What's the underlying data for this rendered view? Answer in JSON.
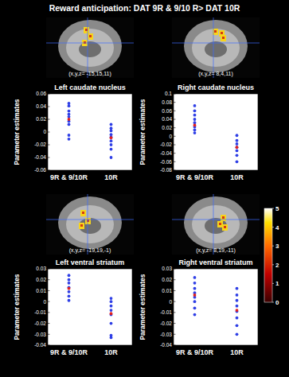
{
  "figure": {
    "title": "Reward anticipation: DAT 9R & 9/10 R> DAT 10R",
    "brain_labels": [
      "(x,y,z= -15,15,11)",
      "(x,y,z= 8,4,11)",
      "(x,y,z= -19,19,-1)",
      "(x,y,z= 8,19,-11)"
    ],
    "colorbar_range": [
      0,
      5
    ],
    "colorbar_ticks": [
      0,
      1,
      2,
      3,
      4,
      5
    ]
  },
  "chart_data": [
    {
      "type": "scatter",
      "title": "Left caudate nucleus",
      "y_label": "Parameter estimates",
      "categories": [
        "9R & 9/10R",
        "10R"
      ],
      "ylim": [
        -0.06,
        0.06
      ],
      "yticks": [
        -0.06,
        -0.04,
        -0.02,
        0,
        0.02,
        0.04,
        0.06
      ],
      "series": [
        {
          "color": "#2f3fe6",
          "marker": "dot",
          "x": [
            "9R & 9/10R",
            "9R & 9/10R",
            "9R & 9/10R",
            "9R & 9/10R",
            "9R & 9/10R",
            "9R & 9/10R",
            "9R & 9/10R",
            "9R & 9/10R",
            "9R & 9/10R",
            "10R",
            "10R",
            "10R",
            "10R",
            "10R",
            "10R",
            "10R",
            "10R",
            "10R"
          ],
          "values": [
            0.045,
            0.041,
            0.033,
            0.028,
            0.024,
            0.017,
            0.012,
            -0.005,
            -0.011,
            0.012,
            0.006,
            0.002,
            -0.004,
            -0.008,
            -0.014,
            -0.02,
            -0.027,
            -0.04
          ]
        },
        {
          "color": "#e02020",
          "marker": "dot",
          "x": [
            "9R & 9/10R",
            "10R"
          ],
          "values": [
            0.02,
            -0.009
          ]
        }
      ]
    },
    {
      "type": "scatter",
      "title": "Right caudate nucleus",
      "y_label": "Parameter estimates",
      "categories": [
        "9R & 9/10R",
        "10R"
      ],
      "ylim": [
        -0.08,
        0.1
      ],
      "yticks": [
        -0.08,
        -0.06,
        -0.04,
        -0.02,
        0,
        0.02,
        0.04,
        0.06,
        0.08,
        0.1
      ],
      "series": [
        {
          "color": "#2f3fe6",
          "marker": "dot",
          "x": [
            "9R & 9/10R",
            "9R & 9/10R",
            "9R & 9/10R",
            "9R & 9/10R",
            "9R & 9/10R",
            "9R & 9/10R",
            "9R & 9/10R",
            "9R & 9/10R",
            "10R",
            "10R",
            "10R",
            "10R",
            "10R",
            "10R",
            "10R"
          ],
          "values": [
            0.072,
            0.06,
            0.05,
            0.04,
            0.032,
            0.022,
            0.015,
            0.008,
            0.002,
            -0.01,
            -0.018,
            -0.026,
            -0.034,
            -0.045,
            -0.06
          ]
        },
        {
          "color": "#e02020",
          "marker": "dot",
          "x": [
            "9R & 9/10R",
            "10R"
          ],
          "values": [
            0.026,
            -0.026
          ]
        }
      ]
    },
    {
      "type": "scatter",
      "title": "Left ventral striatum",
      "y_label": "Parameter estimates",
      "categories": [
        "9R & 9/10R",
        "10R"
      ],
      "ylim": [
        -0.04,
        0.03
      ],
      "yticks": [
        -0.04,
        -0.03,
        -0.02,
        -0.01,
        0,
        0.01,
        0.02,
        0.03
      ],
      "series": [
        {
          "color": "#2f3fe6",
          "marker": "dot",
          "x": [
            "9R & 9/10R",
            "9R & 9/10R",
            "9R & 9/10R",
            "9R & 9/10R",
            "9R & 9/10R",
            "9R & 9/10R",
            "9R & 9/10R",
            "10R",
            "10R",
            "10R",
            "10R",
            "10R",
            "10R",
            "10R",
            "10R"
          ],
          "values": [
            0.024,
            0.02,
            0.017,
            0.013,
            0.009,
            0.005,
            0.001,
            0.003,
            0,
            -0.004,
            -0.008,
            -0.012,
            -0.02,
            -0.031,
            -0.033
          ]
        },
        {
          "color": "#e02020",
          "marker": "dot",
          "x": [
            "9R & 9/10R",
            "10R"
          ],
          "values": [
            0.012,
            -0.011
          ]
        }
      ]
    },
    {
      "type": "scatter",
      "title": "Right ventral striatum",
      "y_label": "Parameter estimates",
      "categories": [
        "9R & 9/10R",
        "10R"
      ],
      "ylim": [
        -0.04,
        0.03
      ],
      "yticks": [
        -0.04,
        -0.03,
        -0.02,
        -0.01,
        0,
        0.01,
        0.02,
        0.03
      ],
      "series": [
        {
          "color": "#2f3fe6",
          "marker": "dot",
          "x": [
            "9R & 9/10R",
            "9R & 9/10R",
            "9R & 9/10R",
            "9R & 9/10R",
            "9R & 9/10R",
            "9R & 9/10R",
            "9R & 9/10R",
            "9R & 9/10R",
            "10R",
            "10R",
            "10R",
            "10R",
            "10R",
            "10R",
            "10R",
            "10R"
          ],
          "values": [
            0.022,
            0.017,
            0.012,
            0.008,
            0.004,
            0,
            -0.006,
            -0.012,
            0.012,
            0.006,
            0.001,
            -0.004,
            -0.009,
            -0.015,
            -0.022,
            -0.03
          ]
        },
        {
          "color": "#e02020",
          "marker": "dot",
          "x": [
            "9R & 9/10R",
            "10R"
          ],
          "values": [
            0.006,
            -0.008
          ]
        }
      ]
    }
  ]
}
